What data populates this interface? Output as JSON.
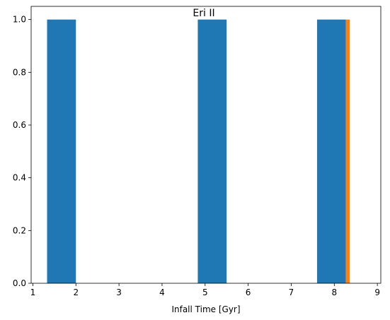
{
  "chart_data": {
    "type": "bar",
    "title": "Eri II",
    "xlabel": "Infall Time [Gyr]",
    "ylabel": "",
    "xlim": [
      0.96,
      9.08
    ],
    "ylim": [
      0,
      1.05
    ],
    "grid": false,
    "x_ticks": [
      1,
      2,
      3,
      4,
      5,
      6,
      7,
      8,
      9
    ],
    "y_ticks": [
      0.0,
      0.2,
      0.4,
      0.6,
      0.8,
      1.0
    ],
    "series": [
      {
        "color": "#1f77b4",
        "bars": [
          {
            "x0": 1.33,
            "x1": 2.0,
            "value": 1.0
          },
          {
            "x0": 4.83,
            "x1": 5.5,
            "value": 1.0
          },
          {
            "x0": 7.6,
            "x1": 8.27,
            "value": 1.0
          }
        ]
      },
      {
        "color": "#ff7f0e",
        "bars": [
          {
            "x0": 8.27,
            "x1": 8.36,
            "value": 1.0
          }
        ]
      }
    ]
  }
}
